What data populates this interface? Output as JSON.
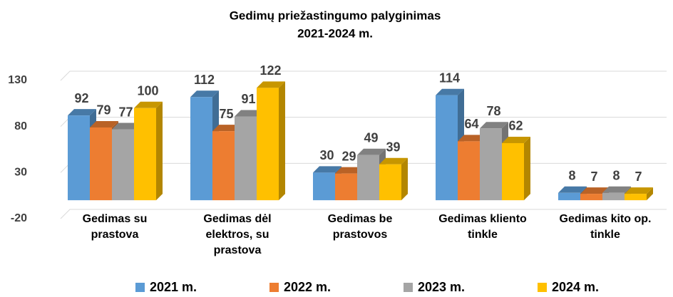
{
  "chart_data": {
    "type": "bar3d",
    "title": "Gedimų priežastingumo palyginimas",
    "subtitle": "2021-2024 m.",
    "categories": [
      "Gedimas su prastova",
      "Gedimas dėl elektros, su prastova",
      "Gedimas be prastovos",
      "Gedimas kliento tinkle",
      "Gedimas kito op. tinkle"
    ],
    "series": [
      {
        "name": "2021 m.",
        "color": "#5b9bd5",
        "values": [
          92,
          112,
          30,
          114,
          8
        ]
      },
      {
        "name": "2022 m.",
        "color": "#ed7d31",
        "values": [
          79,
          75,
          29,
          64,
          7
        ]
      },
      {
        "name": "2023 m.",
        "color": "#a5a5a5",
        "values": [
          77,
          91,
          49,
          78,
          8
        ]
      },
      {
        "name": "2024 m.",
        "color": "#ffc000",
        "values": [
          100,
          122,
          39,
          62,
          7
        ]
      }
    ],
    "ylim": [
      -20,
      130
    ],
    "yticks": [
      -20,
      30,
      80,
      130
    ],
    "grid": true,
    "legend": "bottom"
  }
}
